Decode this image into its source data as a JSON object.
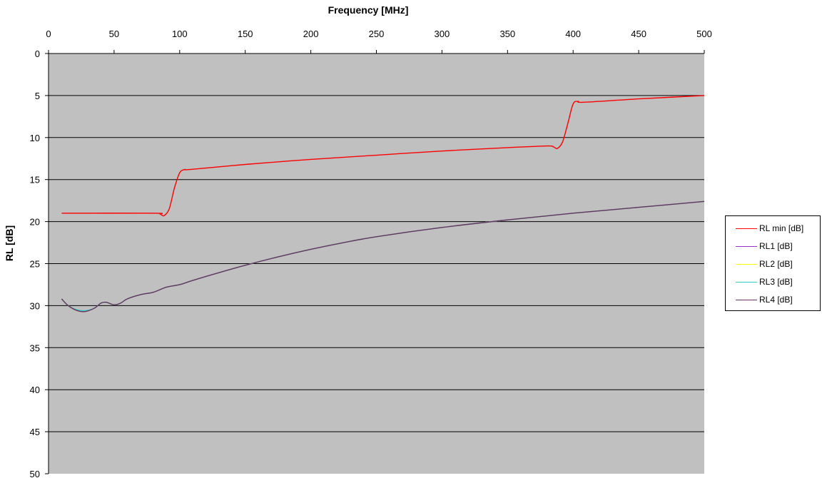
{
  "chart_data": {
    "type": "line",
    "title": "",
    "xlabel": "Frequency [MHz]",
    "ylabel": "RL [dB]",
    "x_axis_position": "top",
    "y_axis_reversed": true,
    "xlim": [
      0,
      500
    ],
    "ylim": [
      0,
      50
    ],
    "x_ticks": [
      "0",
      "50",
      "100",
      "150",
      "200",
      "250",
      "300",
      "350",
      "400",
      "450",
      "500"
    ],
    "y_ticks": [
      "0",
      "5",
      "10",
      "15",
      "20",
      "25",
      "30",
      "35",
      "40",
      "45",
      "50"
    ],
    "grid": "horizontal",
    "plot_background": "#c0c0c0",
    "legend_position": "right",
    "series": [
      {
        "name": "RL min [dB]",
        "color": "#ff0000",
        "points": [
          [
            10,
            19
          ],
          [
            80,
            19
          ],
          [
            85,
            19.1
          ],
          [
            88,
            19.3
          ],
          [
            92,
            18.5
          ],
          [
            96,
            16
          ],
          [
            100,
            14.2
          ],
          [
            104,
            13.8
          ],
          [
            108,
            13.8
          ],
          [
            150,
            13.2
          ],
          [
            200,
            12.6
          ],
          [
            250,
            12.1
          ],
          [
            300,
            11.6
          ],
          [
            350,
            11.2
          ],
          [
            380,
            11.0
          ],
          [
            385,
            11.1
          ],
          [
            388,
            11.3
          ],
          [
            392,
            10.5
          ],
          [
            396,
            8.3
          ],
          [
            400,
            6.0
          ],
          [
            404,
            5.7
          ],
          [
            408,
            5.8
          ],
          [
            450,
            5.4
          ],
          [
            500,
            5.0
          ]
        ]
      },
      {
        "name": "RL1 [dB]",
        "color": "#9933cc",
        "points": [
          [
            10,
            29.2
          ],
          [
            15,
            30
          ],
          [
            22,
            30.6
          ],
          [
            28,
            30.7
          ],
          [
            35,
            30.3
          ],
          [
            40,
            29.7
          ],
          [
            44,
            29.6
          ],
          [
            50,
            29.9
          ],
          [
            55,
            29.7
          ],
          [
            60,
            29.2
          ],
          [
            70,
            28.7
          ],
          [
            80,
            28.4
          ],
          [
            90,
            27.8
          ],
          [
            100,
            27.5
          ],
          [
            110,
            27.0
          ],
          [
            125,
            26.3
          ],
          [
            150,
            25.2
          ],
          [
            175,
            24.2
          ],
          [
            200,
            23.3
          ],
          [
            225,
            22.5
          ],
          [
            250,
            21.8
          ],
          [
            300,
            20.7
          ],
          [
            350,
            19.8
          ],
          [
            400,
            19.0
          ],
          [
            450,
            18.3
          ],
          [
            500,
            17.6
          ]
        ]
      },
      {
        "name": "RL2 [dB]",
        "color": "#ffff00",
        "points": [
          [
            10,
            29.2
          ],
          [
            15,
            30
          ],
          [
            22,
            30.6
          ],
          [
            28,
            30.7
          ],
          [
            35,
            30.3
          ],
          [
            40,
            29.7
          ],
          [
            44,
            29.6
          ],
          [
            50,
            29.9
          ],
          [
            55,
            29.7
          ],
          [
            60,
            29.2
          ],
          [
            70,
            28.7
          ],
          [
            80,
            28.4
          ],
          [
            90,
            27.8
          ],
          [
            100,
            27.5
          ],
          [
            110,
            27.0
          ],
          [
            125,
            26.3
          ],
          [
            150,
            25.2
          ],
          [
            175,
            24.2
          ],
          [
            200,
            23.3
          ],
          [
            225,
            22.5
          ],
          [
            250,
            21.8
          ],
          [
            300,
            20.7
          ],
          [
            350,
            19.8
          ],
          [
            400,
            19.0
          ],
          [
            450,
            18.3
          ],
          [
            500,
            17.6
          ]
        ]
      },
      {
        "name": "RL3 [dB]",
        "color": "#33cccc",
        "points": [
          [
            10,
            29.2
          ],
          [
            15,
            30
          ],
          [
            22,
            30.5
          ],
          [
            28,
            30.6
          ],
          [
            35,
            30.3
          ],
          [
            40,
            29.7
          ],
          [
            44,
            29.6
          ],
          [
            50,
            29.9
          ],
          [
            55,
            29.7
          ],
          [
            60,
            29.2
          ],
          [
            70,
            28.7
          ],
          [
            80,
            28.4
          ],
          [
            90,
            27.8
          ],
          [
            100,
            27.5
          ],
          [
            110,
            27.0
          ],
          [
            125,
            26.3
          ],
          [
            150,
            25.2
          ],
          [
            175,
            24.2
          ],
          [
            200,
            23.3
          ],
          [
            225,
            22.5
          ],
          [
            250,
            21.8
          ],
          [
            300,
            20.7
          ],
          [
            350,
            19.8
          ],
          [
            400,
            19.0
          ],
          [
            450,
            18.3
          ],
          [
            500,
            17.6
          ]
        ]
      },
      {
        "name": "RL4 [dB]",
        "color": "#663366",
        "points": [
          [
            10,
            29.2
          ],
          [
            15,
            30
          ],
          [
            22,
            30.6
          ],
          [
            28,
            30.7
          ],
          [
            35,
            30.3
          ],
          [
            40,
            29.7
          ],
          [
            44,
            29.6
          ],
          [
            50,
            29.9
          ],
          [
            55,
            29.7
          ],
          [
            60,
            29.2
          ],
          [
            70,
            28.7
          ],
          [
            80,
            28.4
          ],
          [
            90,
            27.8
          ],
          [
            100,
            27.5
          ],
          [
            110,
            27.0
          ],
          [
            125,
            26.3
          ],
          [
            150,
            25.2
          ],
          [
            175,
            24.2
          ],
          [
            200,
            23.3
          ],
          [
            225,
            22.5
          ],
          [
            250,
            21.8
          ],
          [
            300,
            20.7
          ],
          [
            350,
            19.8
          ],
          [
            400,
            19.0
          ],
          [
            450,
            18.3
          ],
          [
            500,
            17.6
          ]
        ]
      }
    ]
  }
}
